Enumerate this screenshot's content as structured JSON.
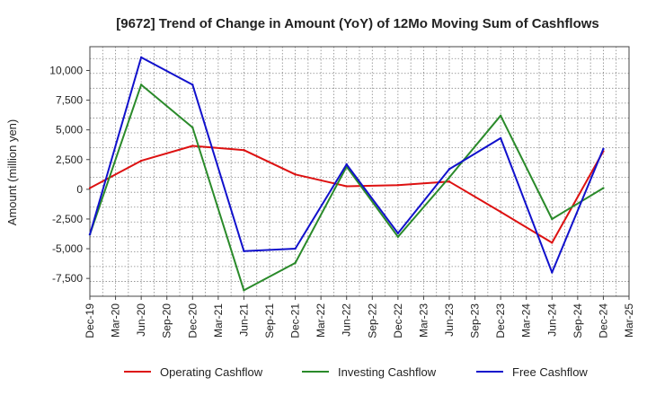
{
  "chart_data": {
    "type": "line",
    "title": "[9672]  Trend of Change in Amount (YoY) of 12Mo Moving Sum of Cashflows",
    "xlabel": "",
    "ylabel": "Amount (million yen)",
    "ylim": [
      -9000,
      12000
    ],
    "yticks": [
      10000,
      7500,
      5000,
      2500,
      0,
      -2500,
      -5000,
      -7500
    ],
    "ytick_labels": [
      "10,000",
      "7,500",
      "5,000",
      "2,500",
      "0",
      "-2,500",
      "-5,000",
      "-7,500"
    ],
    "categories": [
      "Dec-19",
      "Mar-20",
      "Jun-20",
      "Sep-20",
      "Dec-20",
      "Mar-21",
      "Jun-21",
      "Sep-21",
      "Dec-21",
      "Mar-22",
      "Jun-22",
      "Sep-22",
      "Dec-22",
      "Mar-23",
      "Jun-23",
      "Sep-23",
      "Dec-23",
      "Mar-24",
      "Jun-24",
      "Sep-24",
      "Dec-24",
      "Mar-25"
    ],
    "grid": true,
    "legend_position": "bottom",
    "series": [
      {
        "name": "Operating Cashflow",
        "color": "#dd1111",
        "points": [
          {
            "x": "Dec-19",
            "y": 100
          },
          {
            "x": "Jun-20",
            "y": 2400
          },
          {
            "x": "Dec-20",
            "y": 3650
          },
          {
            "x": "Jun-21",
            "y": 3300
          },
          {
            "x": "Dec-21",
            "y": 1250
          },
          {
            "x": "Jun-22",
            "y": 250
          },
          {
            "x": "Dec-22",
            "y": 350
          },
          {
            "x": "Jun-23",
            "y": 650
          },
          {
            "x": "Dec-23",
            "y": -1900
          },
          {
            "x": "Jun-24",
            "y": -4500
          },
          {
            "x": "Dec-24",
            "y": 3200
          }
        ]
      },
      {
        "name": "Investing Cashflow",
        "color": "#2a8a2a",
        "points": [
          {
            "x": "Dec-19",
            "y": -3800
          },
          {
            "x": "Jun-20",
            "y": 8800
          },
          {
            "x": "Dec-20",
            "y": 5200
          },
          {
            "x": "Jun-21",
            "y": -8500
          },
          {
            "x": "Dec-21",
            "y": -6200
          },
          {
            "x": "Jun-22",
            "y": 1900
          },
          {
            "x": "Dec-22",
            "y": -4000
          },
          {
            "x": "Jun-23",
            "y": 1000
          },
          {
            "x": "Dec-23",
            "y": 6200
          },
          {
            "x": "Jun-24",
            "y": -2500
          },
          {
            "x": "Dec-24",
            "y": 100
          }
        ]
      },
      {
        "name": "Free Cashflow",
        "color": "#1111cc",
        "points": [
          {
            "x": "Dec-19",
            "y": -3800
          },
          {
            "x": "Jun-20",
            "y": 11100
          },
          {
            "x": "Dec-20",
            "y": 8800
          },
          {
            "x": "Jun-21",
            "y": -5200
          },
          {
            "x": "Dec-21",
            "y": -5000
          },
          {
            "x": "Jun-22",
            "y": 2100
          },
          {
            "x": "Dec-22",
            "y": -3700
          },
          {
            "x": "Jun-23",
            "y": 1700
          },
          {
            "x": "Dec-23",
            "y": 4300
          },
          {
            "x": "Jun-24",
            "y": -7000
          },
          {
            "x": "Dec-24",
            "y": 3400
          }
        ]
      }
    ]
  }
}
